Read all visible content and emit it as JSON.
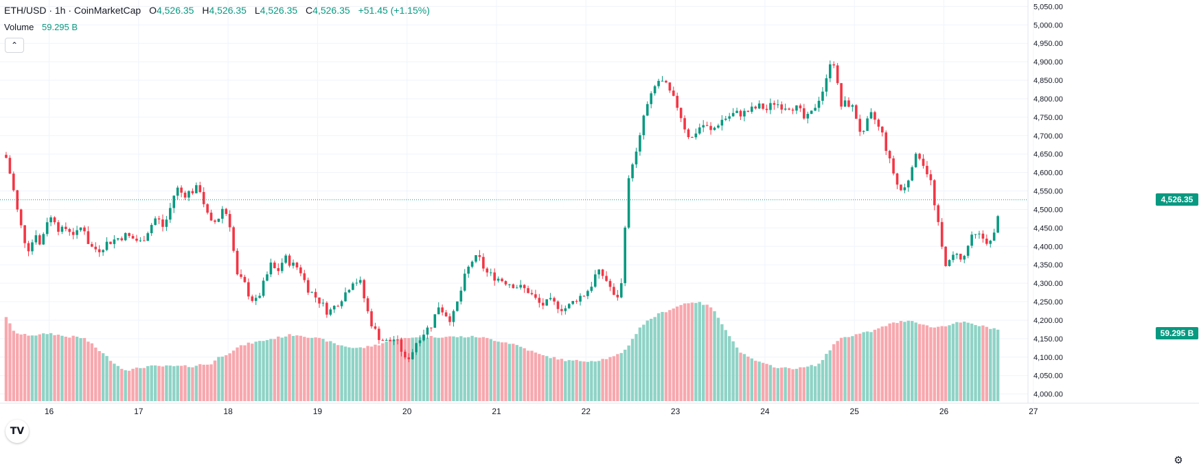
{
  "legend": {
    "symbol": "ETH/USD · 1h · CoinMarketCap",
    "open_key": "O",
    "open": "4,526.35",
    "high_key": "H",
    "high": "4,526.35",
    "low_key": "L",
    "low": "4,526.35",
    "close_key": "C",
    "close": "4,526.35",
    "change": "+51.45 (+1.15%)"
  },
  "volume_legend": {
    "label": "Volume",
    "value": "59.295 B"
  },
  "collapse_icon": "chevron-up-icon",
  "logo_text": "TV",
  "gear_icon": "gear-icon",
  "price_badge": "4,526.35",
  "volume_badge": "59.295 B",
  "colors": {
    "up": "#089981",
    "down": "#f23645",
    "vol_up": "#8fd3c6",
    "vol_down": "#f7a8ae",
    "grid": "#f0f3fa"
  },
  "chart_data": {
    "type": "candlestick",
    "x_axis_labels": [
      "16",
      "17",
      "18",
      "19",
      "20",
      "21",
      "22",
      "23",
      "24",
      "25",
      "26",
      "27"
    ],
    "x_day_start": 15.5,
    "y_ticks": [
      4000,
      4050,
      4100,
      4150,
      4200,
      4250,
      4300,
      4350,
      4400,
      4450,
      4500,
      4550,
      4600,
      4650,
      4700,
      4750,
      4800,
      4850,
      4900,
      4950,
      5000,
      5050
    ],
    "y_tick_labels": [
      "4,000.00",
      "4,050.00",
      "4,100.00",
      "4,150.00",
      "4,200.00",
      "4,250.00",
      "4,300.00",
      "4,350.00",
      "4,400.00",
      "4,450.00",
      "4,500.00",
      "4,550.00",
      "4,600.00",
      "4,650.00",
      "4,700.00",
      "4,750.00",
      "4,800.00",
      "4,850.00",
      "4,900.00",
      "4,950.00",
      "5,000.00",
      "5,050.00"
    ],
    "ylim": [
      3980,
      5060
    ],
    "last_price": 4526.35,
    "current_volume_label": "59.295 B",
    "close_path": [
      [
        15.52,
        4640
      ],
      [
        15.58,
        4580
      ],
      [
        15.65,
        4490
      ],
      [
        15.72,
        4420
      ],
      [
        15.78,
        4390
      ],
      [
        15.85,
        4440
      ],
      [
        15.9,
        4400
      ],
      [
        15.97,
        4470
      ],
      [
        16.05,
        4480
      ],
      [
        16.12,
        4440
      ],
      [
        16.2,
        4450
      ],
      [
        16.3,
        4430
      ],
      [
        16.38,
        4460
      ],
      [
        16.45,
        4400
      ],
      [
        16.55,
        4390
      ],
      [
        16.65,
        4410
      ],
      [
        16.75,
        4420
      ],
      [
        16.85,
        4430
      ],
      [
        16.95,
        4420
      ],
      [
        17.03,
        4410
      ],
      [
        17.12,
        4450
      ],
      [
        17.2,
        4480
      ],
      [
        17.28,
        4450
      ],
      [
        17.35,
        4500
      ],
      [
        17.42,
        4560
      ],
      [
        17.5,
        4540
      ],
      [
        17.6,
        4550
      ],
      [
        17.68,
        4560
      ],
      [
        17.75,
        4500
      ],
      [
        17.8,
        4460
      ],
      [
        17.88,
        4470
      ],
      [
        17.95,
        4510
      ],
      [
        18.02,
        4460
      ],
      [
        18.1,
        4320
      ],
      [
        18.18,
        4300
      ],
      [
        18.25,
        4260
      ],
      [
        18.32,
        4250
      ],
      [
        18.4,
        4300
      ],
      [
        18.48,
        4350
      ],
      [
        18.55,
        4330
      ],
      [
        18.63,
        4370
      ],
      [
        18.72,
        4350
      ],
      [
        18.8,
        4340
      ],
      [
        18.88,
        4290
      ],
      [
        18.95,
        4270
      ],
      [
        19.03,
        4250
      ],
      [
        19.12,
        4220
      ],
      [
        19.2,
        4240
      ],
      [
        19.3,
        4270
      ],
      [
        19.4,
        4310
      ],
      [
        19.48,
        4300
      ],
      [
        19.55,
        4230
      ],
      [
        19.62,
        4180
      ],
      [
        19.7,
        4150
      ],
      [
        19.78,
        4140
      ],
      [
        19.85,
        4150
      ],
      [
        19.92,
        4130
      ],
      [
        19.98,
        4090
      ],
      [
        20.05,
        4110
      ],
      [
        20.12,
        4150
      ],
      [
        20.2,
        4170
      ],
      [
        20.28,
        4190
      ],
      [
        20.35,
        4240
      ],
      [
        20.42,
        4220
      ],
      [
        20.5,
        4200
      ],
      [
        20.58,
        4260
      ],
      [
        20.65,
        4320
      ],
      [
        20.72,
        4360
      ],
      [
        20.8,
        4370
      ],
      [
        20.88,
        4330
      ],
      [
        20.95,
        4320
      ],
      [
        21.05,
        4310
      ],
      [
        21.15,
        4300
      ],
      [
        21.25,
        4290
      ],
      [
        21.35,
        4280
      ],
      [
        21.42,
        4260
      ],
      [
        21.5,
        4240
      ],
      [
        21.6,
        4250
      ],
      [
        21.68,
        4240
      ],
      [
        21.75,
        4230
      ],
      [
        21.82,
        4240
      ],
      [
        21.9,
        4260
      ],
      [
        21.98,
        4270
      ],
      [
        22.05,
        4290
      ],
      [
        22.12,
        4330
      ],
      [
        22.2,
        4320
      ],
      [
        22.27,
        4290
      ],
      [
        22.33,
        4250
      ],
      [
        22.4,
        4300
      ],
      [
        22.45,
        4520
      ],
      [
        22.5,
        4620
      ],
      [
        22.58,
        4660
      ],
      [
        22.65,
        4760
      ],
      [
        22.72,
        4800
      ],
      [
        22.8,
        4850
      ],
      [
        22.88,
        4840
      ],
      [
        22.95,
        4810
      ],
      [
        23.02,
        4780
      ],
      [
        23.08,
        4740
      ],
      [
        23.12,
        4710
      ],
      [
        23.18,
        4690
      ],
      [
        23.25,
        4720
      ],
      [
        23.32,
        4730
      ],
      [
        23.4,
        4710
      ],
      [
        23.5,
        4740
      ],
      [
        23.58,
        4750
      ],
      [
        23.66,
        4760
      ],
      [
        23.75,
        4760
      ],
      [
        23.85,
        4770
      ],
      [
        23.95,
        4780
      ],
      [
        24.02,
        4770
      ],
      [
        24.1,
        4790
      ],
      [
        24.2,
        4780
      ],
      [
        24.3,
        4780
      ],
      [
        24.38,
        4770
      ],
      [
        24.45,
        4740
      ],
      [
        24.52,
        4760
      ],
      [
        24.6,
        4800
      ],
      [
        24.68,
        4840
      ],
      [
        24.75,
        4930
      ],
      [
        24.8,
        4850
      ],
      [
        24.85,
        4780
      ],
      [
        24.92,
        4790
      ],
      [
        25.0,
        4770
      ],
      [
        25.05,
        4720
      ],
      [
        25.1,
        4700
      ],
      [
        25.15,
        4740
      ],
      [
        25.2,
        4760
      ],
      [
        25.25,
        4730
      ],
      [
        25.32,
        4700
      ],
      [
        25.38,
        4640
      ],
      [
        25.45,
        4590
      ],
      [
        25.5,
        4550
      ],
      [
        25.58,
        4560
      ],
      [
        25.65,
        4630
      ],
      [
        25.72,
        4650
      ],
      [
        25.78,
        4620
      ],
      [
        25.85,
        4580
      ],
      [
        25.9,
        4500
      ],
      [
        25.95,
        4440
      ],
      [
        26.0,
        4360
      ],
      [
        26.05,
        4350
      ],
      [
        26.1,
        4370
      ],
      [
        26.15,
        4390
      ],
      [
        26.2,
        4350
      ],
      [
        26.25,
        4390
      ],
      [
        26.3,
        4420
      ],
      [
        26.38,
        4430
      ],
      [
        26.45,
        4420
      ],
      [
        26.52,
        4410
      ],
      [
        26.58,
        4440
      ],
      [
        26.62,
        4526.35
      ]
    ],
    "volume_path": [
      [
        15.52,
        4210
      ],
      [
        15.6,
        4170
      ],
      [
        15.7,
        4160
      ],
      [
        15.8,
        4160
      ],
      [
        15.9,
        4160
      ],
      [
        16.0,
        4165
      ],
      [
        16.1,
        4160
      ],
      [
        16.2,
        4155
      ],
      [
        16.3,
        4155
      ],
      [
        16.4,
        4150
      ],
      [
        16.5,
        4130
      ],
      [
        16.6,
        4110
      ],
      [
        16.7,
        4090
      ],
      [
        16.8,
        4070
      ],
      [
        16.9,
        4065
      ],
      [
        17.0,
        4070
      ],
      [
        17.1,
        4075
      ],
      [
        17.2,
        4075
      ],
      [
        17.3,
        4075
      ],
      [
        17.4,
        4075
      ],
      [
        17.5,
        4075
      ],
      [
        17.6,
        4075
      ],
      [
        17.7,
        4080
      ],
      [
        17.8,
        4080
      ],
      [
        17.9,
        4100
      ],
      [
        18.0,
        4110
      ],
      [
        18.1,
        4125
      ],
      [
        18.2,
        4135
      ],
      [
        18.3,
        4140
      ],
      [
        18.4,
        4145
      ],
      [
        18.5,
        4150
      ],
      [
        18.6,
        4155
      ],
      [
        18.7,
        4160
      ],
      [
        18.8,
        4160
      ],
      [
        18.9,
        4155
      ],
      [
        19.0,
        4150
      ],
      [
        19.1,
        4145
      ],
      [
        19.2,
        4135
      ],
      [
        19.3,
        4130
      ],
      [
        19.4,
        4125
      ],
      [
        19.5,
        4125
      ],
      [
        19.6,
        4130
      ],
      [
        19.7,
        4135
      ],
      [
        19.8,
        4145
      ],
      [
        19.9,
        4150
      ],
      [
        20.0,
        4150
      ],
      [
        20.1,
        4155
      ],
      [
        20.2,
        4155
      ],
      [
        20.3,
        4155
      ],
      [
        20.4,
        4155
      ],
      [
        20.5,
        4155
      ],
      [
        20.6,
        4155
      ],
      [
        20.7,
        4155
      ],
      [
        20.8,
        4155
      ],
      [
        20.9,
        4150
      ],
      [
        21.0,
        4145
      ],
      [
        21.1,
        4140
      ],
      [
        21.2,
        4135
      ],
      [
        21.3,
        4125
      ],
      [
        21.4,
        4115
      ],
      [
        21.5,
        4105
      ],
      [
        21.6,
        4100
      ],
      [
        21.7,
        4095
      ],
      [
        21.8,
        4090
      ],
      [
        21.9,
        4090
      ],
      [
        22.0,
        4090
      ],
      [
        22.1,
        4090
      ],
      [
        22.2,
        4095
      ],
      [
        22.3,
        4100
      ],
      [
        22.4,
        4110
      ],
      [
        22.5,
        4140
      ],
      [
        22.6,
        4180
      ],
      [
        22.7,
        4200
      ],
      [
        22.8,
        4215
      ],
      [
        22.9,
        4225
      ],
      [
        23.0,
        4235
      ],
      [
        23.1,
        4245
      ],
      [
        23.2,
        4250
      ],
      [
        23.3,
        4245
      ],
      [
        23.4,
        4235
      ],
      [
        23.5,
        4200
      ],
      [
        23.6,
        4160
      ],
      [
        23.7,
        4120
      ],
      [
        23.8,
        4100
      ],
      [
        23.9,
        4090
      ],
      [
        24.0,
        4080
      ],
      [
        24.1,
        4075
      ],
      [
        24.2,
        4070
      ],
      [
        24.3,
        4070
      ],
      [
        24.4,
        4070
      ],
      [
        24.5,
        4075
      ],
      [
        24.6,
        4080
      ],
      [
        24.7,
        4110
      ],
      [
        24.8,
        4145
      ],
      [
        24.9,
        4155
      ],
      [
        25.0,
        4160
      ],
      [
        25.1,
        4165
      ],
      [
        25.2,
        4170
      ],
      [
        25.3,
        4180
      ],
      [
        25.4,
        4190
      ],
      [
        25.5,
        4195
      ],
      [
        25.6,
        4200
      ],
      [
        25.7,
        4195
      ],
      [
        25.8,
        4185
      ],
      [
        25.9,
        4180
      ],
      [
        26.0,
        4185
      ],
      [
        26.1,
        4190
      ],
      [
        26.2,
        4195
      ],
      [
        26.3,
        4190
      ],
      [
        26.4,
        4185
      ],
      [
        26.5,
        4180
      ],
      [
        26.62,
        4175
      ]
    ]
  }
}
